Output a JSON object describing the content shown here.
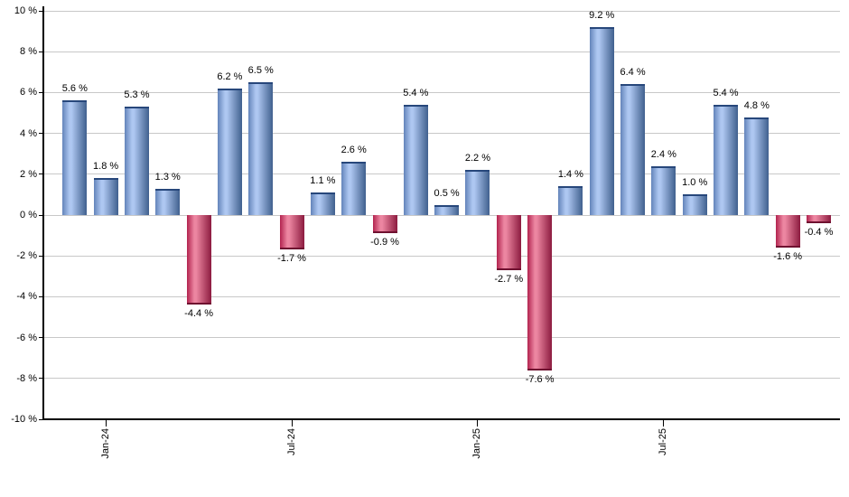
{
  "chart_data": {
    "type": "bar",
    "title": "",
    "xlabel": "",
    "ylabel": "",
    "ylim": [
      -10,
      10
    ],
    "grid": true,
    "legend": "none",
    "values": [
      5.6,
      1.8,
      5.3,
      1.3,
      -4.4,
      6.2,
      6.5,
      -1.7,
      1.1,
      2.6,
      -0.9,
      5.4,
      0.5,
      2.2,
      -2.7,
      -7.6,
      1.4,
      9.2,
      6.4,
      2.4,
      1.0,
      5.4,
      4.8,
      -1.6,
      -0.4
    ],
    "bar_labels": [
      "5.6 %",
      "1.8 %",
      "5.3 %",
      "1.3 %",
      "-4.4 %",
      "6.2 %",
      "6.5 %",
      "-1.7 %",
      "1.1 %",
      "2.6 %",
      "-0.9 %",
      "5.4 %",
      "0.5 %",
      "2.2 %",
      "-2.7 %",
      "-7.6 %",
      "1.4 %",
      "9.2 %",
      "6.4 %",
      "2.4 %",
      "1.0 %",
      "5.4 %",
      "4.8 %",
      "-1.6 %",
      "-0.4 %"
    ],
    "y_tick_labels": [
      "10 %",
      "8 %",
      "6 %",
      "4 %",
      "2 %",
      "0 %",
      "-2 %",
      "-4 %",
      "-6 %",
      "-8 %",
      "-10 %"
    ],
    "x_ticks": [
      {
        "bar_index": 1,
        "label": "Jan-24"
      },
      {
        "bar_index": 7,
        "label": "Jul-24"
      },
      {
        "bar_index": 13,
        "label": "Jan-25"
      },
      {
        "bar_index": 19,
        "label": "Jul-25"
      }
    ],
    "colors": {
      "positive_edge_left": "#6384ba",
      "positive_light": "#aec7f1",
      "positive_dark": "#40608e",
      "positive_cap": "#27477b",
      "negative_edge_left": "#b2234f",
      "negative_light": "#ec86a1",
      "negative_dark": "#8c1b3f",
      "negative_cap": "#6f1130",
      "grid": "#c8c8c8",
      "axis": "#000000",
      "text": "#000000",
      "background": "#ffffff"
    }
  }
}
